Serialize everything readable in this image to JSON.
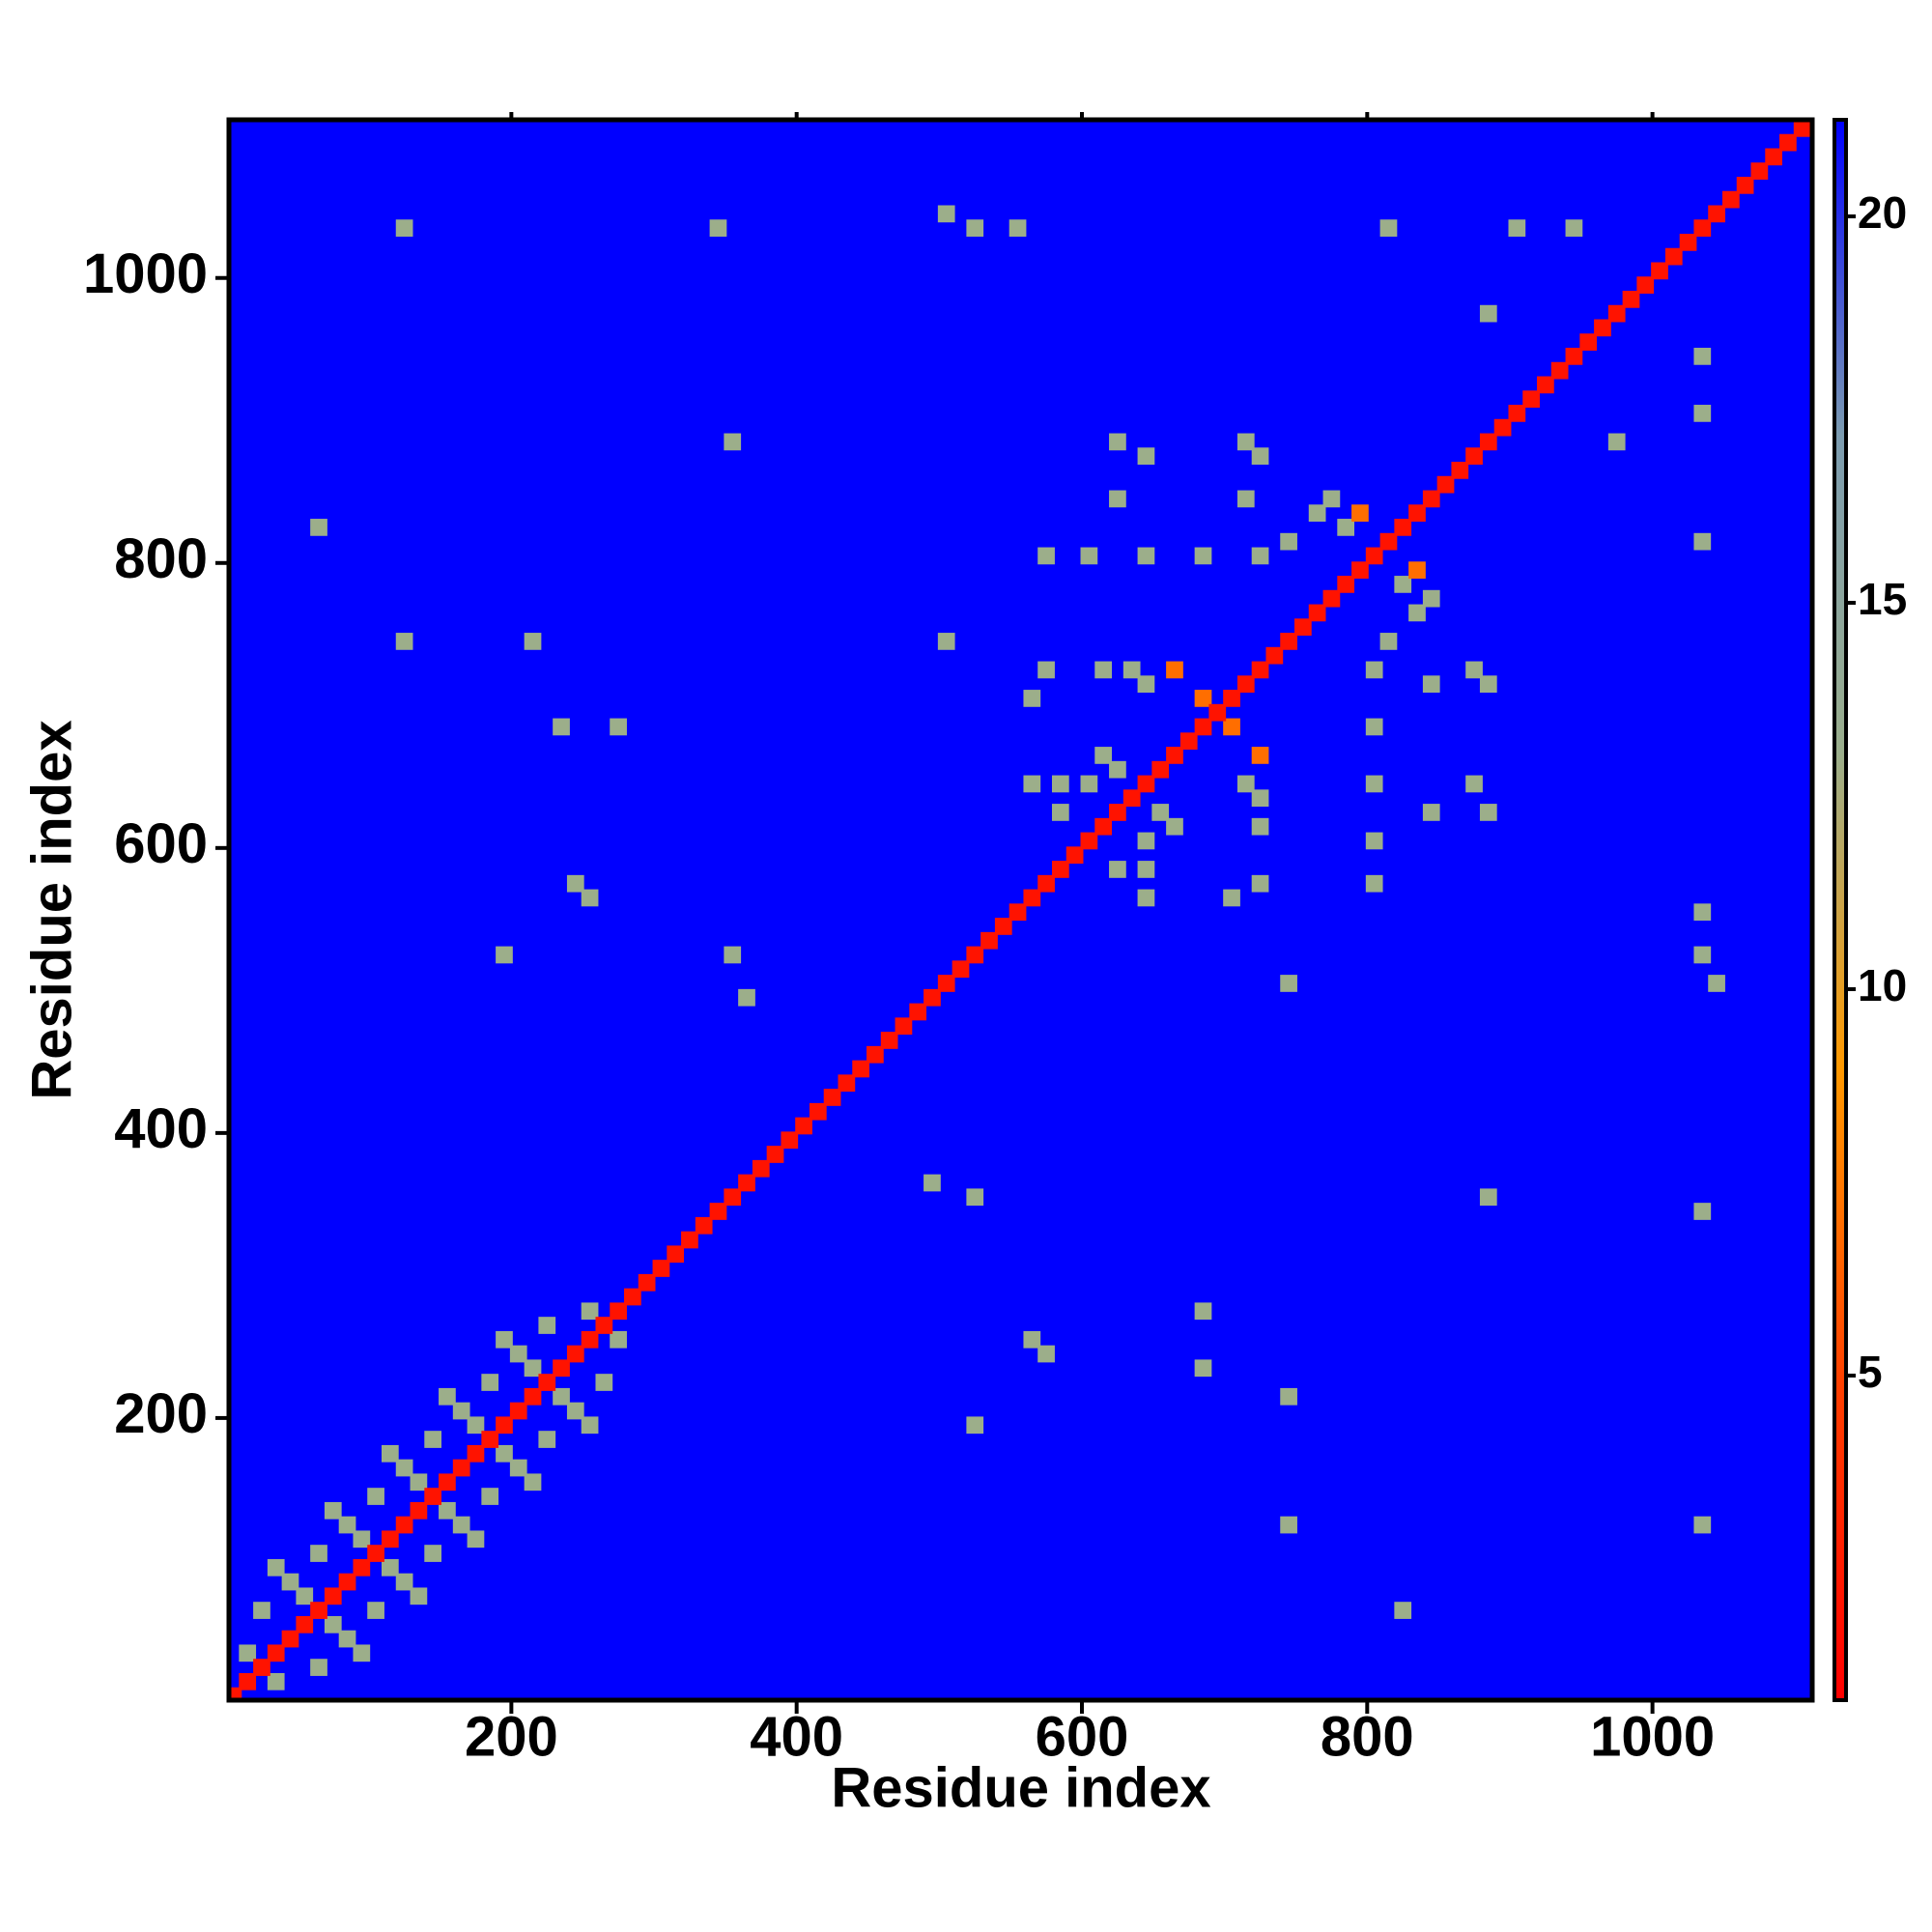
{
  "chart_data": {
    "type": "heatmap",
    "x_label": "Residue index",
    "y_label": "Residue index",
    "xlim": [
      2,
      1112
    ],
    "ylim": [
      2,
      1111
    ],
    "xticks": [
      200,
      400,
      600,
      800,
      1000
    ],
    "yticks": [
      200,
      400,
      600,
      800,
      1000
    ],
    "clim": [
      0.8,
      21.25
    ],
    "cticks": [
      5,
      10,
      15,
      20
    ],
    "colormap": [
      "#ff0000",
      "#ff4000",
      "#ff9900",
      "#9aae8c",
      "#7c9cb0",
      "#0000ff"
    ],
    "cells": [
      [
        25,
        65,
        13
      ],
      [
        65,
        25,
        13
      ],
      [
        45,
        85,
        13
      ],
      [
        85,
        45,
        13
      ],
      [
        65,
        105,
        13
      ],
      [
        105,
        65,
        13
      ],
      [
        85,
        125,
        13
      ],
      [
        125,
        85,
        13
      ],
      [
        105,
        145,
        13
      ],
      [
        145,
        105,
        13
      ],
      [
        125,
        165,
        13
      ],
      [
        165,
        125,
        13
      ],
      [
        145,
        185,
        13
      ],
      [
        185,
        145,
        13
      ],
      [
        165,
        205,
        13
      ],
      [
        205,
        165,
        13
      ],
      [
        185,
        225,
        13
      ],
      [
        225,
        185,
        13
      ],
      [
        205,
        245,
        13
      ],
      [
        245,
        205,
        13
      ],
      [
        225,
        265,
        13
      ],
      [
        265,
        225,
        13
      ],
      [
        35,
        95,
        13
      ],
      [
        95,
        35,
        13
      ],
      [
        75,
        135,
        13
      ],
      [
        135,
        75,
        13
      ],
      [
        115,
        175,
        13
      ],
      [
        175,
        115,
        13
      ],
      [
        155,
        215,
        13
      ],
      [
        215,
        155,
        13
      ],
      [
        195,
        255,
        13
      ],
      [
        255,
        195,
        13
      ],
      [
        15,
        35,
        13
      ],
      [
        35,
        15,
        13
      ],
      [
        55,
        75,
        13
      ],
      [
        75,
        55,
        13
      ],
      [
        95,
        115,
        13
      ],
      [
        115,
        95,
        13
      ],
      [
        135,
        155,
        13
      ],
      [
        155,
        135,
        13
      ],
      [
        175,
        195,
        13
      ],
      [
        195,
        175,
        13
      ],
      [
        215,
        235,
        13
      ],
      [
        235,
        215,
        13
      ],
      [
        255,
        275,
        13
      ],
      [
        275,
        255,
        13
      ],
      [
        125,
        1035,
        13
      ],
      [
        1035,
        125,
        13
      ],
      [
        345,
        1035,
        13
      ],
      [
        1035,
        345,
        13
      ],
      [
        505,
        1045,
        13
      ],
      [
        1045,
        505,
        13
      ],
      [
        525,
        1035,
        13
      ],
      [
        1035,
        525,
        13
      ],
      [
        555,
        1035,
        13
      ],
      [
        1035,
        555,
        13
      ],
      [
        815,
        1035,
        13
      ],
      [
        1035,
        815,
        13
      ],
      [
        905,
        1035,
        13
      ],
      [
        1035,
        905,
        13
      ],
      [
        945,
        1035,
        13
      ],
      [
        1035,
        945,
        13
      ],
      [
        355,
        885,
        13
      ],
      [
        885,
        355,
        13
      ],
      [
        65,
        825,
        13
      ],
      [
        825,
        65,
        13
      ],
      [
        125,
        745,
        13
      ],
      [
        745,
        125,
        13
      ],
      [
        215,
        745,
        13
      ],
      [
        745,
        215,
        13
      ],
      [
        235,
        685,
        13
      ],
      [
        685,
        235,
        13
      ],
      [
        275,
        685,
        13
      ],
      [
        685,
        275,
        13
      ],
      [
        255,
        565,
        13
      ],
      [
        565,
        255,
        13
      ],
      [
        245,
        575,
        13
      ],
      [
        575,
        245,
        13
      ],
      [
        195,
        525,
        13
      ],
      [
        525,
        195,
        13
      ],
      [
        355,
        525,
        13
      ],
      [
        525,
        355,
        13
      ],
      [
        365,
        495,
        13
      ],
      [
        495,
        365,
        13
      ],
      [
        505,
        745,
        13
      ],
      [
        745,
        505,
        13
      ],
      [
        885,
        975,
        13
      ],
      [
        975,
        885,
        13
      ],
      [
        615,
        725,
        13
      ],
      [
        725,
        615,
        13
      ],
      [
        635,
        725,
        13
      ],
      [
        725,
        635,
        13
      ],
      [
        645,
        715,
        13
      ],
      [
        715,
        645,
        13
      ],
      [
        605,
        645,
        13
      ],
      [
        645,
        605,
        13
      ],
      [
        625,
        655,
        13
      ],
      [
        655,
        625,
        13
      ],
      [
        615,
        665,
        13
      ],
      [
        665,
        615,
        13
      ],
      [
        765,
        835,
        13
      ],
      [
        835,
        765,
        13
      ],
      [
        785,
        825,
        13
      ],
      [
        825,
        785,
        13
      ],
      [
        775,
        845,
        13
      ],
      [
        845,
        775,
        13
      ],
      [
        745,
        815,
        13
      ],
      [
        815,
        745,
        13
      ],
      [
        645,
        565,
        13
      ],
      [
        565,
        645,
        13
      ],
      [
        645,
        585,
        13
      ],
      [
        585,
        645,
        13
      ],
      [
        705,
        565,
        13
      ],
      [
        565,
        705,
        13
      ],
      [
        725,
        575,
        13
      ],
      [
        575,
        725,
        13
      ],
      [
        575,
        805,
        13
      ],
      [
        805,
        575,
        13
      ],
      [
        605,
        805,
        13
      ],
      [
        805,
        605,
        13
      ],
      [
        645,
        805,
        13
      ],
      [
        805,
        645,
        13
      ],
      [
        685,
        805,
        13
      ],
      [
        805,
        685,
        13
      ],
      [
        725,
        805,
        13
      ],
      [
        805,
        725,
        13
      ],
      [
        845,
        715,
        13
      ],
      [
        715,
        845,
        13
      ],
      [
        885,
        715,
        13
      ],
      [
        715,
        885,
        13
      ],
      [
        885,
        625,
        13
      ],
      [
        625,
        885,
        13
      ],
      [
        845,
        625,
        13
      ],
      [
        625,
        845,
        13
      ],
      [
        585,
        625,
        13
      ],
      [
        625,
        585,
        13
      ],
      [
        645,
        875,
        13
      ],
      [
        875,
        645,
        13
      ],
      [
        725,
        875,
        13
      ],
      [
        875,
        725,
        13
      ],
      [
        665,
        725,
        7
      ],
      [
        725,
        665,
        7
      ],
      [
        795,
        835,
        7
      ],
      [
        835,
        795,
        7
      ],
      [
        705,
        685,
        7
      ],
      [
        685,
        705,
        7
      ],
      [
        5,
        5,
        2
      ],
      [
        15,
        15,
        2
      ],
      [
        25,
        25,
        2
      ],
      [
        35,
        35,
        2
      ],
      [
        45,
        45,
        2
      ],
      [
        55,
        55,
        2
      ],
      [
        65,
        65,
        2
      ],
      [
        75,
        75,
        2
      ],
      [
        85,
        85,
        2
      ],
      [
        95,
        95,
        2
      ],
      [
        105,
        105,
        2
      ],
      [
        115,
        115,
        2
      ],
      [
        125,
        125,
        2
      ],
      [
        135,
        135,
        2
      ],
      [
        145,
        145,
        2
      ],
      [
        155,
        155,
        2
      ],
      [
        165,
        165,
        2
      ],
      [
        175,
        175,
        2
      ],
      [
        185,
        185,
        2
      ],
      [
        195,
        195,
        2
      ],
      [
        205,
        205,
        2
      ],
      [
        215,
        215,
        2
      ],
      [
        225,
        225,
        2
      ],
      [
        235,
        235,
        2
      ],
      [
        245,
        245,
        2
      ],
      [
        255,
        255,
        2
      ],
      [
        265,
        265,
        2
      ],
      [
        275,
        275,
        2
      ],
      [
        285,
        285,
        2
      ],
      [
        295,
        295,
        2
      ],
      [
        305,
        305,
        2
      ],
      [
        315,
        315,
        2
      ],
      [
        325,
        325,
        2
      ],
      [
        335,
        335,
        2
      ],
      [
        345,
        345,
        2
      ],
      [
        355,
        355,
        2
      ],
      [
        365,
        365,
        2
      ],
      [
        375,
        375,
        2
      ],
      [
        385,
        385,
        2
      ],
      [
        395,
        395,
        2
      ],
      [
        405,
        405,
        2
      ],
      [
        415,
        415,
        2
      ],
      [
        425,
        425,
        2
      ],
      [
        435,
        435,
        2
      ],
      [
        445,
        445,
        2
      ],
      [
        455,
        455,
        2
      ],
      [
        465,
        465,
        2
      ],
      [
        475,
        475,
        2
      ],
      [
        485,
        485,
        2
      ],
      [
        495,
        495,
        2
      ],
      [
        505,
        505,
        2
      ],
      [
        515,
        515,
        2
      ],
      [
        525,
        525,
        2
      ],
      [
        535,
        535,
        2
      ],
      [
        545,
        545,
        2
      ],
      [
        555,
        555,
        2
      ],
      [
        565,
        565,
        2
      ],
      [
        575,
        575,
        2
      ],
      [
        585,
        585,
        2
      ],
      [
        595,
        595,
        2
      ],
      [
        605,
        605,
        2
      ],
      [
        615,
        615,
        2
      ],
      [
        625,
        625,
        2
      ],
      [
        635,
        635,
        2
      ],
      [
        645,
        645,
        2
      ],
      [
        655,
        655,
        2
      ],
      [
        665,
        665,
        2
      ],
      [
        675,
        675,
        2
      ],
      [
        685,
        685,
        2
      ],
      [
        695,
        695,
        2
      ],
      [
        705,
        705,
        2
      ],
      [
        715,
        715,
        2
      ],
      [
        725,
        725,
        2
      ],
      [
        735,
        735,
        2
      ],
      [
        745,
        745,
        2
      ],
      [
        755,
        755,
        2
      ],
      [
        765,
        765,
        2
      ],
      [
        775,
        775,
        2
      ],
      [
        785,
        785,
        2
      ],
      [
        795,
        795,
        2
      ],
      [
        805,
        805,
        2
      ],
      [
        815,
        815,
        2
      ],
      [
        825,
        825,
        2
      ],
      [
        835,
        835,
        2
      ],
      [
        845,
        845,
        2
      ],
      [
        855,
        855,
        2
      ],
      [
        865,
        865,
        2
      ],
      [
        875,
        875,
        2
      ],
      [
        885,
        885,
        2
      ],
      [
        895,
        895,
        2
      ],
      [
        905,
        905,
        2
      ],
      [
        915,
        915,
        2
      ],
      [
        925,
        925,
        2
      ],
      [
        935,
        935,
        2
      ],
      [
        945,
        945,
        2
      ],
      [
        955,
        955,
        2
      ],
      [
        965,
        965,
        2
      ],
      [
        975,
        975,
        2
      ],
      [
        985,
        985,
        2
      ],
      [
        995,
        995,
        2
      ],
      [
        1005,
        1005,
        2
      ],
      [
        1015,
        1015,
        2
      ],
      [
        1025,
        1025,
        2
      ],
      [
        1035,
        1035,
        2
      ],
      [
        1045,
        1045,
        2
      ],
      [
        1055,
        1055,
        2
      ],
      [
        1065,
        1065,
        2
      ],
      [
        1075,
        1075,
        2
      ],
      [
        1085,
        1085,
        2
      ],
      [
        1095,
        1095,
        2
      ],
      [
        1105,
        1105,
        2
      ]
    ]
  }
}
